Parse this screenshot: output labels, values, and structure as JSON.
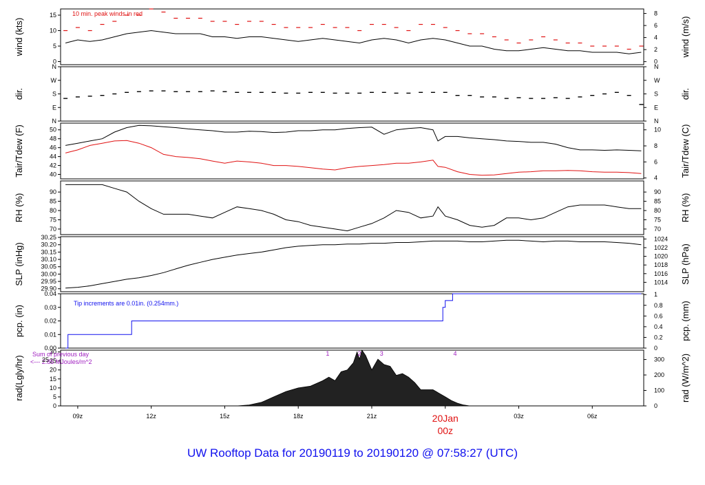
{
  "title": "UW Rooftop Data for 20190119  to  20190120 @ 07:58:27  (UTC)",
  "colors": {
    "trace": "#000000",
    "secondary": "#e01010",
    "annotation_blue": "#1010ee",
    "annotation_purple": "#a020c0",
    "date_marker": "#e01010"
  },
  "chart_data": [
    {
      "id": "wind",
      "type": "line",
      "ylabel": "wind (kts)",
      "ylabel_right": "wind (m/s)",
      "ylim": [
        -1,
        17
      ],
      "yticks": [
        0,
        5,
        10,
        15
      ],
      "right_ylim": [
        -0.5,
        8.75
      ],
      "right_yticks": [
        0,
        2,
        4,
        6,
        8
      ],
      "annotation": "10 min. peak winds in red",
      "series": [
        {
          "role": "wind speed",
          "color": "#000000",
          "x": [
            8.5,
            9,
            9.5,
            10,
            10.5,
            11,
            11.5,
            12,
            12.5,
            13,
            13.5,
            14,
            14.5,
            15,
            15.5,
            16,
            16.5,
            17,
            17.5,
            18,
            18.5,
            19,
            19.5,
            20,
            20.5,
            21,
            21.5,
            22,
            22.5,
            23,
            23.5,
            24,
            24.5,
            25,
            25.5,
            26,
            26.5,
            27,
            27.5,
            28,
            28.5,
            29,
            29.5,
            30,
            30.5,
            31,
            31.5,
            32
          ],
          "y": [
            6,
            7,
            6.5,
            7,
            8,
            9,
            9.5,
            10,
            9.5,
            9,
            9,
            9,
            8,
            8,
            7.5,
            8,
            8,
            7.5,
            7,
            6.5,
            7,
            7.5,
            7,
            6.5,
            6,
            7,
            7.5,
            7,
            6,
            7,
            7.5,
            7,
            6,
            5,
            5,
            4,
            3.5,
            3.5,
            4,
            4.5,
            4,
            3.5,
            3.5,
            3,
            3,
            3,
            2.5,
            3
          ]
        },
        {
          "role": "10 min. peak winds",
          "color": "#e01010",
          "x": [
            8.5,
            9,
            9.5,
            10,
            10.5,
            11,
            11.5,
            12,
            12.5,
            13,
            13.5,
            14,
            14.5,
            15,
            15.5,
            16,
            16.5,
            17,
            17.5,
            18,
            18.5,
            19,
            19.5,
            20,
            20.5,
            21,
            21.5,
            22,
            22.5,
            23,
            23.5,
            24,
            24.5,
            25,
            25.5,
            26,
            26.5,
            27,
            27.5,
            28,
            28.5,
            29,
            29.5,
            30,
            30.5,
            31,
            31.5,
            32
          ],
          "y": [
            10,
            11,
            10,
            12,
            13,
            15,
            15,
            17,
            16,
            14,
            14,
            14,
            13,
            13,
            12,
            13,
            13,
            12,
            11,
            11,
            11,
            12,
            11,
            11,
            10,
            12,
            12,
            11,
            10,
            12,
            12,
            11,
            10,
            9,
            9,
            8,
            7,
            6,
            7,
            8,
            7,
            6,
            6,
            5,
            5,
            5,
            4,
            5
          ]
        }
      ]
    },
    {
      "id": "dir",
      "type": "scatter",
      "ylabel": "dir.",
      "ylabel_right": "dir.",
      "yticks": [
        0,
        90,
        180,
        270,
        360
      ],
      "yticklabels": [
        "N",
        "E",
        "S",
        "W",
        "N"
      ],
      "ylim": [
        0,
        360
      ],
      "series": [
        {
          "role": "wind direction (deg)",
          "color": "#000000",
          "x": [
            8.5,
            9,
            9.5,
            10,
            10.5,
            11,
            11.5,
            12,
            12.5,
            13,
            13.5,
            14,
            14.5,
            15,
            15.5,
            16,
            16.5,
            17,
            17.5,
            18,
            18.5,
            19,
            19.5,
            20,
            20.5,
            21,
            21.5,
            22,
            22.5,
            23,
            23.5,
            24,
            24.5,
            25,
            25.5,
            26,
            26.5,
            27,
            27.5,
            28,
            28.5,
            29,
            29.5,
            30,
            30.5,
            31,
            31.5,
            32
          ],
          "y": [
            150,
            160,
            165,
            170,
            180,
            190,
            195,
            200,
            200,
            195,
            195,
            195,
            200,
            195,
            190,
            190,
            190,
            190,
            185,
            185,
            190,
            190,
            185,
            185,
            185,
            190,
            190,
            185,
            185,
            190,
            190,
            190,
            170,
            170,
            160,
            160,
            150,
            155,
            150,
            150,
            155,
            150,
            160,
            170,
            180,
            190,
            170,
            110
          ]
        }
      ]
    },
    {
      "id": "temp",
      "type": "line",
      "ylabel": "Tair/Tdew (F)",
      "ylabel_right": "Tair/Tdew (C)",
      "ylim": [
        39,
        51.5
      ],
      "yticks": [
        40,
        42,
        44,
        46,
        48,
        50
      ],
      "right_ylim": [
        3.889,
        10.833
      ],
      "right_yticks": [
        4,
        6,
        8,
        10
      ],
      "series": [
        {
          "role": "air temperature",
          "color": "#000000",
          "x": [
            8.5,
            9,
            9.5,
            10,
            10.5,
            11,
            11.5,
            12,
            12.5,
            13,
            13.5,
            14,
            14.5,
            15,
            15.5,
            16,
            16.5,
            17,
            17.5,
            18,
            18.5,
            19,
            19.5,
            20,
            20.5,
            21,
            21.5,
            22,
            22.5,
            23,
            23.5,
            23.7,
            24,
            24.5,
            25,
            25.5,
            26,
            26.5,
            27,
            27.5,
            28,
            28.5,
            29,
            29.5,
            30,
            30.5,
            31,
            31.5,
            32
          ],
          "y": [
            46.5,
            47,
            47.5,
            48,
            49.5,
            50.5,
            51,
            50.9,
            50.7,
            50.5,
            50.2,
            50,
            49.8,
            49.5,
            49.5,
            49.7,
            49.6,
            49.4,
            49.5,
            49.8,
            49.8,
            50,
            50,
            50.3,
            50.5,
            50.6,
            49,
            50,
            50.3,
            50.5,
            50,
            47.5,
            48.5,
            48.5,
            48.2,
            48,
            47.8,
            47.5,
            47.4,
            47.2,
            47.2,
            46.8,
            46,
            45.5,
            45.5,
            45.4,
            45.5,
            45.4,
            45.3
          ]
        },
        {
          "role": "dew point",
          "color": "#e01010",
          "x": [
            8.5,
            9,
            9.5,
            10,
            10.5,
            11,
            11.5,
            12,
            12.5,
            13,
            13.5,
            14,
            14.5,
            15,
            15.5,
            16,
            16.5,
            17,
            17.5,
            18,
            18.5,
            19,
            19.5,
            20,
            20.5,
            21,
            21.5,
            22,
            22.5,
            23,
            23.5,
            23.7,
            24,
            24.5,
            25,
            25.5,
            26,
            26.5,
            27,
            27.5,
            28,
            28.5,
            29,
            29.5,
            30,
            30.5,
            31,
            31.5,
            32
          ],
          "y": [
            44.8,
            45.5,
            46.5,
            47,
            47.5,
            47.6,
            47,
            46,
            44.5,
            44,
            43.8,
            43.5,
            43,
            42.5,
            43,
            42.8,
            42.5,
            42,
            42,
            41.8,
            41.5,
            41.2,
            41,
            41.5,
            41.8,
            42,
            42.2,
            42.5,
            42.5,
            42.8,
            43.2,
            41.8,
            41.6,
            40.6,
            40,
            39.8,
            39.9,
            40.2,
            40.5,
            40.6,
            40.8,
            40.8,
            40.9,
            40.8,
            40.6,
            40.5,
            40.5,
            40.4,
            40.2
          ]
        }
      ]
    },
    {
      "id": "rh",
      "type": "line",
      "ylabel": "RH (%)",
      "ylabel_right": "RH (%)",
      "ylim": [
        67,
        96
      ],
      "yticks": [
        70,
        75,
        80,
        85,
        90
      ],
      "right_yticks": [
        70,
        75,
        80,
        85,
        90
      ],
      "series": [
        {
          "role": "relative humidity",
          "color": "#000000",
          "x": [
            8.5,
            9,
            9.5,
            10,
            10.5,
            11,
            11.5,
            12,
            12.5,
            13,
            13.5,
            14,
            14.5,
            15,
            15.5,
            16,
            16.5,
            17,
            17.5,
            18,
            18.5,
            19,
            19.5,
            20,
            20.5,
            21,
            21.5,
            22,
            22.5,
            23,
            23.5,
            23.7,
            24,
            24.5,
            25,
            25.5,
            26,
            26.5,
            27,
            27.5,
            28,
            28.5,
            29,
            29.5,
            30,
            30.5,
            31,
            31.5,
            32
          ],
          "y": [
            94,
            94,
            94,
            94,
            92,
            90,
            85,
            81,
            78,
            78,
            78,
            77,
            76,
            79,
            82,
            81,
            80,
            78,
            75,
            74,
            72,
            71,
            70,
            69,
            71,
            73,
            76,
            80,
            79,
            76,
            77,
            82,
            77,
            75,
            72,
            71,
            72,
            76,
            76,
            75,
            76,
            79,
            82,
            83,
            83,
            83,
            82,
            81,
            81
          ]
        }
      ]
    },
    {
      "id": "slp",
      "type": "line",
      "ylabel": "SLP (inHg)",
      "ylabel_right": "SLP (hPa)",
      "ylim": [
        29.88,
        30.255
      ],
      "yticks": [
        29.9,
        29.95,
        30.0,
        30.05,
        30.1,
        30.15,
        30.2,
        30.25
      ],
      "yticklabels": [
        "29.90",
        "29.95",
        "30.00",
        "30.05",
        "30.10",
        "30.15",
        "30.20",
        "30.25"
      ],
      "right_ylim": [
        1011.838,
        1024.537
      ],
      "right_yticks": [
        1014,
        1016,
        1018,
        1020,
        1022,
        1024
      ],
      "series": [
        {
          "role": "sea-level pressure",
          "color": "#000000",
          "x": [
            8.5,
            9,
            9.5,
            10,
            10.5,
            11,
            11.5,
            12,
            12.5,
            13,
            13.5,
            14,
            14.5,
            15,
            15.5,
            16,
            16.5,
            17,
            17.5,
            18,
            18.5,
            19,
            19.5,
            20,
            20.5,
            21,
            21.5,
            22,
            22.5,
            23,
            23.5,
            24,
            24.5,
            25,
            25.5,
            26,
            26.5,
            27,
            27.5,
            28,
            28.5,
            29,
            29.5,
            30,
            30.5,
            31,
            31.5,
            32
          ],
          "y": [
            29.905,
            29.91,
            29.92,
            29.935,
            29.95,
            29.965,
            29.975,
            29.99,
            30.01,
            30.035,
            30.06,
            30.08,
            30.1,
            30.115,
            30.13,
            30.14,
            30.15,
            30.165,
            30.18,
            30.19,
            30.195,
            30.2,
            30.2,
            30.205,
            30.205,
            30.21,
            30.21,
            30.215,
            30.215,
            30.22,
            30.225,
            30.225,
            30.225,
            30.22,
            30.22,
            30.225,
            30.23,
            30.23,
            30.225,
            30.22,
            30.225,
            30.225,
            30.22,
            30.22,
            30.22,
            30.215,
            30.21,
            30.2
          ]
        }
      ]
    },
    {
      "id": "pcp",
      "type": "line",
      "ylabel": "pcp. (in)",
      "ylabel_right": "pcp. (mm)",
      "ylim": [
        0,
        0.04
      ],
      "yticks": [
        0,
        0.01,
        0.02,
        0.03,
        0.04
      ],
      "yticklabels": [
        "0.00",
        "0.01",
        "0.02",
        "0.03",
        "0.04"
      ],
      "right_ylim": [
        0,
        1.016
      ],
      "right_yticks": [
        0,
        0.2,
        0.4,
        0.6,
        0.8,
        1.0
      ],
      "right_yticklabels": [
        "0",
        "0.2",
        "0.4",
        "0.6",
        "0.8",
        "1"
      ],
      "annotation": "Tip increments are 0.01in. (0.254mm.)",
      "series": [
        {
          "role": "accumulated precipitation",
          "color": "#1010ee",
          "step": true,
          "x": [
            8.5,
            8.6,
            8.6,
            11.2,
            11.2,
            23.9,
            23.9,
            24.0,
            24.0,
            24.3,
            24.3,
            32
          ],
          "y": [
            0,
            0,
            0.01,
            0.01,
            0.02,
            0.02,
            0.03,
            0.03,
            0.035,
            0.035,
            0.04,
            0.04
          ]
        }
      ]
    },
    {
      "id": "rad",
      "type": "area",
      "ylabel": "rad(Lgly/hr)",
      "ylabel_right": "rad (W/m^2)",
      "ylim": [
        0,
        31
      ],
      "yticks": [
        0,
        5,
        10,
        15,
        20,
        25,
        30
      ],
      "right_ylim": [
        0,
        360.4
      ],
      "right_yticks": [
        0,
        100,
        200,
        300
      ],
      "annotation_left": "Sum of previous day",
      "annotation_left2": "<--- 2.85 MJoules/m^2",
      "annotation_overlap": "25",
      "markers": [
        {
          "x": 19.2,
          "label": "1"
        },
        {
          "x": 20.5,
          "label": "2"
        },
        {
          "x": 21.4,
          "label": "3"
        },
        {
          "x": 24.4,
          "label": "4"
        }
      ],
      "series": [
        {
          "role": "solar radiation",
          "color": "#000000",
          "x": [
            15.5,
            16,
            16.5,
            17,
            17.5,
            18,
            18.5,
            19,
            19.25,
            19.5,
            19.75,
            20,
            20.25,
            20.4,
            20.5,
            20.6,
            20.75,
            21,
            21.25,
            21.5,
            21.75,
            22,
            22.25,
            22.5,
            22.75,
            23,
            23.25,
            23.5,
            23.75,
            24,
            24.25,
            24.5,
            24.75,
            25
          ],
          "y": [
            0,
            0.5,
            2,
            5,
            8,
            10,
            11,
            14,
            16,
            14,
            19,
            20,
            24,
            30,
            26,
            31,
            28,
            20,
            26,
            23,
            22,
            17,
            18,
            16,
            13,
            9,
            9,
            9,
            7,
            5,
            3,
            1.5,
            0.5,
            0
          ]
        }
      ]
    }
  ],
  "x_axis": {
    "xlim": [
      8.3,
      32.1
    ],
    "ticks": [
      {
        "x": 9,
        "label": "09z"
      },
      {
        "x": 12,
        "label": "12z"
      },
      {
        "x": 15,
        "label": "15z"
      },
      {
        "x": 18,
        "label": "18z"
      },
      {
        "x": 21,
        "label": "21z"
      },
      {
        "x": 24,
        "label": "20Jan",
        "label2": "00z"
      },
      {
        "x": 27,
        "label": "03z"
      },
      {
        "x": 30,
        "label": "06z"
      }
    ]
  }
}
